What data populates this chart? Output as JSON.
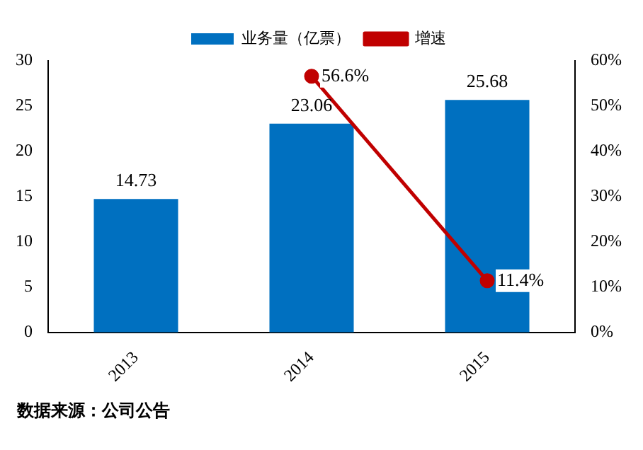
{
  "chart_data": {
    "type": "bar",
    "categories": [
      "2013",
      "2014",
      "2015"
    ],
    "series": [
      {
        "name": "业务量（亿票）",
        "color": "#0070c0",
        "values": [
          14.73,
          23.06,
          25.68
        ],
        "value_labels": [
          "14.73",
          "23.06",
          "25.68"
        ]
      },
      {
        "name": "增速",
        "type": "line",
        "axis": "y2",
        "color": "#c00000",
        "values": [
          null,
          56.6,
          11.4
        ],
        "value_labels": [
          null,
          "56.6%",
          "11.4%"
        ]
      }
    ],
    "ylim": [
      0,
      30
    ],
    "yticks": [
      0,
      5,
      10,
      15,
      20,
      25,
      30
    ],
    "y2lim": [
      0,
      60
    ],
    "y2ticks": [
      {
        "value": 0,
        "label": "0%"
      },
      {
        "value": 10,
        "label": "10%"
      },
      {
        "value": 20,
        "label": "20%"
      },
      {
        "value": 30,
        "label": "30%"
      },
      {
        "value": 40,
        "label": "40%"
      },
      {
        "value": 50,
        "label": "50%"
      },
      {
        "value": 60,
        "label": "60%"
      }
    ],
    "grid": false,
    "legend": "top",
    "marker": "circle",
    "line_style": "solid",
    "annotations": [
      "数据来源：公司公告"
    ]
  }
}
